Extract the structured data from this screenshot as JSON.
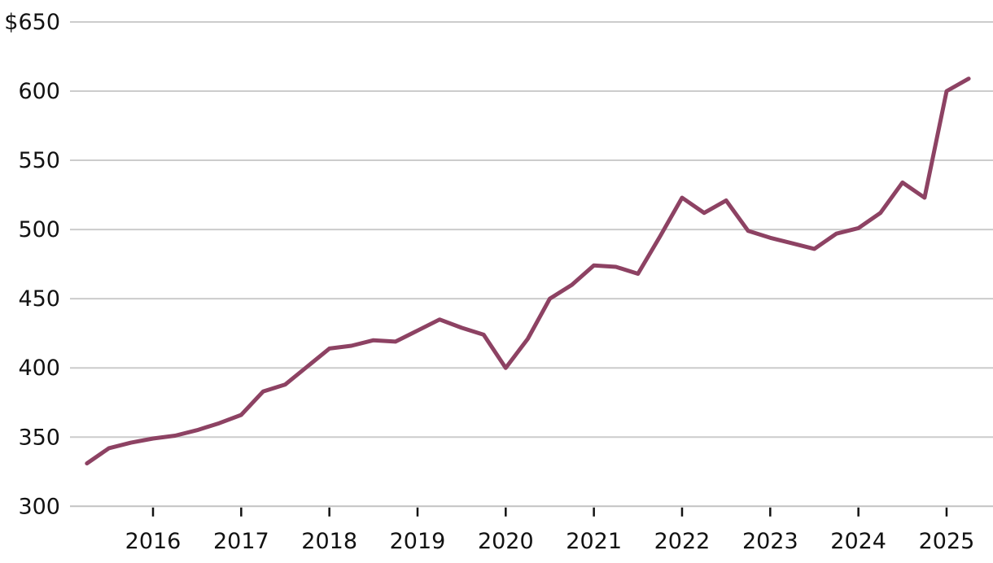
{
  "chart_data": {
    "type": "line",
    "title": "",
    "xlabel": "",
    "ylabel": "",
    "unit_prefix": "$",
    "legend": "none",
    "grid": "horizontal-only",
    "x": [
      2015.25,
      2015.5,
      2015.75,
      2016.0,
      2016.25,
      2016.5,
      2016.75,
      2017.0,
      2017.25,
      2017.5,
      2017.75,
      2018.0,
      2018.25,
      2018.5,
      2018.75,
      2019.0,
      2019.25,
      2019.5,
      2019.75,
      2020.0,
      2020.25,
      2020.5,
      2020.75,
      2021.0,
      2021.25,
      2021.5,
      2021.75,
      2022.0,
      2022.25,
      2022.5,
      2022.75,
      2023.0,
      2023.25,
      2023.5,
      2023.75,
      2024.0,
      2024.25,
      2024.5,
      2024.75,
      2025.0,
      2025.25
    ],
    "quarters": [
      "2015 Q2",
      "2015 Q3",
      "2015 Q4",
      "2016 Q1",
      "2016 Q2",
      "2016 Q3",
      "2016 Q4",
      "2017 Q1",
      "2017 Q2",
      "2017 Q3",
      "2017 Q4",
      "2018 Q1",
      "2018 Q2",
      "2018 Q3",
      "2018 Q4",
      "2019 Q1",
      "2019 Q2",
      "2019 Q3",
      "2019 Q4",
      "2020 Q1",
      "2020 Q2",
      "2020 Q3",
      "2020 Q4",
      "2021 Q1",
      "2021 Q2",
      "2021 Q3",
      "2021 Q4",
      "2022 Q1",
      "2022 Q2",
      "2022 Q3",
      "2022 Q4",
      "2023 Q1",
      "2023 Q2",
      "2023 Q3",
      "2023 Q4",
      "2024 Q1",
      "2024 Q2",
      "2024 Q3",
      "2024 Q4",
      "2025 Q1",
      "2025 Q2"
    ],
    "values": [
      331,
      342,
      346,
      349,
      351,
      355,
      360,
      366,
      383,
      388,
      401,
      414,
      416,
      420,
      419,
      427,
      435,
      429,
      424,
      400,
      421,
      450,
      460,
      474,
      473,
      468,
      495,
      523,
      512,
      521,
      499,
      494,
      490,
      486,
      497,
      501,
      512,
      534,
      523,
      600,
      609
    ],
    "x_ticks": [
      2016,
      2017,
      2018,
      2019,
      2020,
      2021,
      2022,
      2023,
      2024,
      2025
    ],
    "x_tick_labels": [
      "2016",
      "2017",
      "2018",
      "2019",
      "2020",
      "2021",
      "2022",
      "2023",
      "2024",
      "2025"
    ],
    "y_ticks": [
      300,
      350,
      400,
      450,
      500,
      550,
      600,
      650
    ],
    "y_tick_labels": [
      "300",
      "350",
      "400",
      "450",
      "500",
      "550",
      "600",
      "$650"
    ],
    "ylim": [
      300,
      650
    ],
    "xlim": [
      2015.06,
      2025.53
    ],
    "colors": {
      "line": "#8d4263",
      "grid": "#cccccc",
      "axis": "#c2c2c2",
      "tick": "#121212",
      "text": "#121212",
      "background": "#ffffff"
    },
    "line_width": 5
  }
}
